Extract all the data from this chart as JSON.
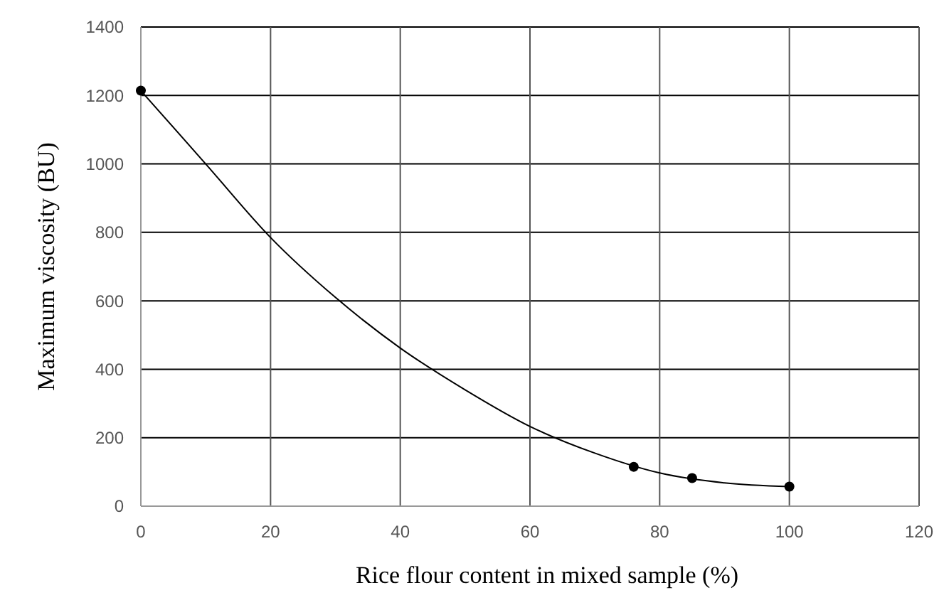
{
  "chart_data": {
    "type": "scatter",
    "xlabel": "Rice flour content in mixed sample (%)",
    "ylabel": "Maximum viscosity (BU)",
    "series": [
      {
        "color": "#000000",
        "marker": "circle",
        "x": [
          0,
          76,
          85,
          100
        ],
        "values": [
          1214,
          115,
          82,
          57
        ]
      },
      {
        "type": "line",
        "color": "#000000",
        "x": [
          0,
          10,
          20,
          30,
          40,
          50,
          60,
          70,
          80,
          90,
          100
        ],
        "values": [
          1214,
          1000,
          785,
          610,
          462,
          340,
          233,
          155,
          97,
          68,
          57
        ]
      }
    ],
    "xlim": [
      0,
      120
    ],
    "xticks": [
      0,
      20,
      40,
      60,
      80,
      100,
      120
    ],
    "ylim": [
      0,
      1400
    ],
    "yticks": [
      0,
      200,
      400,
      600,
      800,
      1000,
      1200,
      1400
    ],
    "grid": true
  }
}
